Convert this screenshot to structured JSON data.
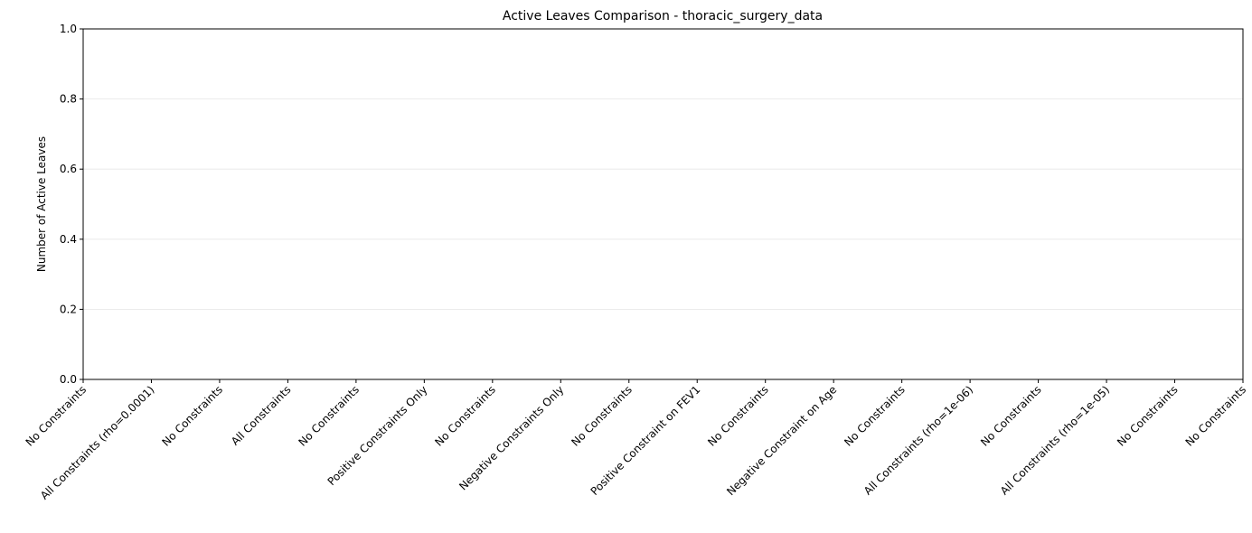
{
  "chart_data": {
    "type": "bar",
    "title": "Active Leaves Comparison - thoracic_surgery_data",
    "ylabel": "Number of Active Leaves",
    "categories": [
      "No Constraints",
      "All Constraints (rho=0.0001)",
      "No Constraints",
      "All Constraints",
      "No Constraints",
      "Positive Constraints Only",
      "No Constraints",
      "Negative Constraints Only",
      "No Constraints",
      "Positive Constraint on FEV1",
      "No Constraints",
      "Negative Constraint on Age",
      "No Constraints",
      "All Constraints (rho=1e-06)",
      "No Constraints",
      "All Constraints (rho=1e-05)",
      "No Constraints",
      "No Constraints"
    ],
    "values": [
      0,
      0,
      0,
      0,
      0,
      0,
      0,
      0,
      0,
      0,
      0,
      0,
      0,
      0,
      0,
      0,
      0,
      0
    ],
    "color": "#1f77b4",
    "ylim": [
      0,
      1
    ],
    "yticks": [
      {
        "value": 0,
        "label": "0.0"
      },
      0.2,
      0.4,
      0.6,
      0.8,
      {
        "value": 1,
        "label": "1.0"
      }
    ],
    "grid": true
  }
}
